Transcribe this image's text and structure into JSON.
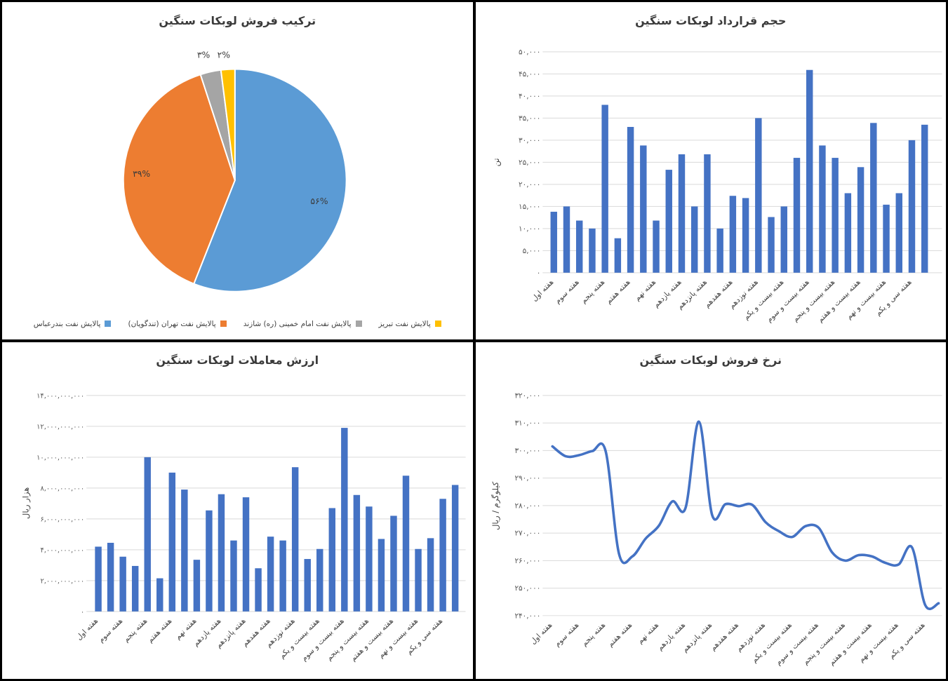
{
  "colors": {
    "bar": "#4472C4",
    "line": "#4472C4",
    "gridline": "#D9D9D9",
    "tick_text": "#595959",
    "title_text": "#3b3b3b",
    "axis_label_text": "#404040",
    "pie_blue": "#5B9BD5",
    "pie_orange": "#ED7D31",
    "pie_gray": "#A5A5A5",
    "pie_yellow": "#FFC000"
  },
  "week_labels_visible": [
    "هفته اول",
    "هفته سوم",
    "هفته پنجم",
    "هفته هفتم",
    "هفته نهم",
    "هفته یازدهم",
    "هفته پانزدهم",
    "هفته هفدهم",
    "هفته نوزدهم",
    "هفته بیست و یکم",
    "هفته بیست و سوم",
    "هفته بیست و پنجم",
    "هفته بیست و هفتم",
    "هفته بیست و نهم",
    "هفته سی و یکم"
  ],
  "chart_data": [
    {
      "type": "pie",
      "title": "ترکیب فروش لوبکات سنگین",
      "legend_position": "bottom",
      "slices": [
        {
          "label": "پالایش نفت بندرعباس",
          "value": 56,
          "percent_label": "۵۶%",
          "color": "#5B9BD5"
        },
        {
          "label": "پالایش نفت تهران (تندگویان)",
          "value": 39,
          "percent_label": "۳۹%",
          "color": "#ED7D31"
        },
        {
          "label": "پالایش نفت امام خمینی (ره) شازند",
          "value": 3,
          "percent_label": "۳%",
          "color": "#A5A5A5"
        },
        {
          "label": "پالایش نفت تبریز",
          "value": 2,
          "percent_label": "۲%",
          "color": "#FFC000"
        }
      ]
    },
    {
      "type": "bar",
      "title": "حجم قرارداد لوبکات سنگین",
      "ylabel": "تن",
      "ylim": [
        0,
        50000
      ],
      "ytick_step": 5000,
      "grid": true,
      "label_interval": 2,
      "categories_visible": [
        "هفته اول",
        "هفته سوم",
        "هفته پنجم",
        "هفته هفتم",
        "هفته نهم",
        "هفته یازدهم",
        "هفته پانزدهم",
        "هفته هفدهم",
        "هفته نوزدهم",
        "هفته بیست و یکم",
        "هفته بیست و سوم",
        "هفته بیست و پنجم",
        "هفته بیست و هفتم",
        "هفته بیست و نهم",
        "هفته سی و یکم"
      ],
      "values": [
        13800,
        15000,
        11800,
        10000,
        38000,
        7800,
        33000,
        28800,
        11800,
        23300,
        26800,
        15000,
        26800,
        10000,
        17400,
        16900,
        35000,
        12600,
        15000,
        26000,
        45900,
        28800,
        26000,
        18000,
        23900,
        33900,
        15400,
        18000,
        30000,
        33500
      ]
    },
    {
      "type": "bar",
      "title": "ارزش معاملات لوبکات سنگین",
      "ylabel": "هزار ریال",
      "ylim": [
        0,
        14000000000
      ],
      "ytick_step": 2000000000,
      "grid": true,
      "label_interval": 2,
      "categories_visible": [
        "هفته اول",
        "هفته سوم",
        "هفته پنجم",
        "هفته هفتم",
        "هفته نهم",
        "هفته یازدهم",
        "هفته پانزدهم",
        "هفته هفدهم",
        "هفته نوزدهم",
        "هفته بیست و یکم",
        "هفته بیست و سوم",
        "هفته بیست و پنجم",
        "هفته بیست و هفتم",
        "هفته بیست و نهم",
        "هفته سی و یکم"
      ],
      "values": [
        4200000000,
        4450000000,
        3550000000,
        2950000000,
        10000000000,
        2150000000,
        9000000000,
        7900000000,
        3350000000,
        6550000000,
        7600000000,
        4600000000,
        7400000000,
        2800000000,
        4850000000,
        4600000000,
        9350000000,
        3400000000,
        4050000000,
        6700000000,
        11900000000,
        7550000000,
        6800000000,
        4700000000,
        6200000000,
        8800000000,
        4050000000,
        4750000000,
        7300000000,
        8200000000
      ]
    },
    {
      "type": "line",
      "title": "نرخ فروش لوبکات سنگین",
      "ylabel": "کیلوگرم / ریال",
      "ylim": [
        240000,
        320000
      ],
      "ytick_step": 10000,
      "grid": true,
      "smooth": true,
      "label_interval": 2,
      "categories_visible": [
        "هفته اول",
        "هفته سوم",
        "هفته پنجم",
        "هفته هفتم",
        "هفته نهم",
        "هفته یازدهم",
        "هفته پانزدهم",
        "هفته هفدهم",
        "هفته نوزدهم",
        "هفته بیست و یکم",
        "هفته بیست و سوم",
        "هفته بیست و پنجم",
        "هفته بیست و هفتم",
        "هفته بیست و نهم",
        "هفته سی و یکم"
      ],
      "values": [
        301500,
        297900,
        298300,
        299800,
        299700,
        262500,
        261500,
        268000,
        272700,
        281500,
        279200,
        310500,
        276500,
        280500,
        279800,
        280300,
        274000,
        270700,
        268600,
        272500,
        271900,
        263000,
        260000,
        262000,
        261500,
        259200,
        258600,
        264800,
        243800,
        244500
      ]
    }
  ]
}
